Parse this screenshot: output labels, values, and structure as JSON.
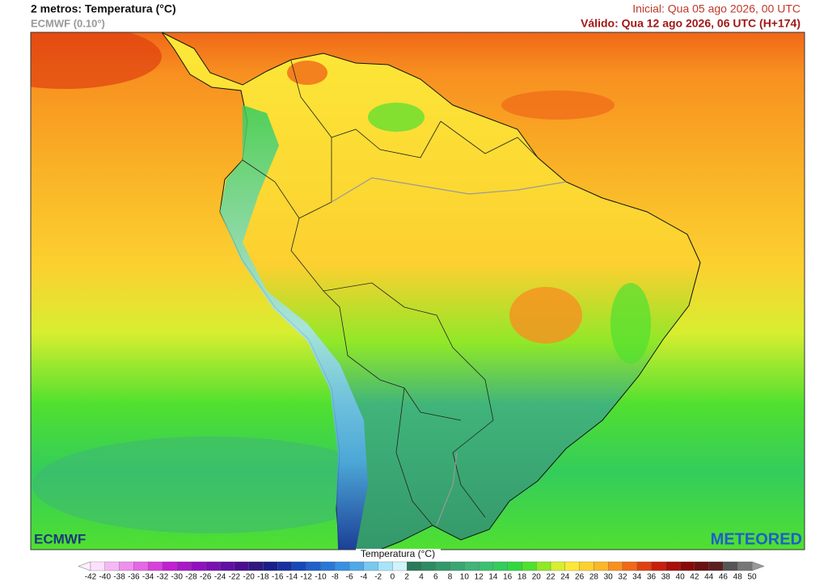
{
  "header": {
    "title": "2 metros: Temperatura (°C)",
    "model": "ECMWF (0.10°)",
    "initial": "Inicial: Qua 05 ago 2026, 00 UTC",
    "valid": "Válido: Qua 12 ago 2026, 06 UTC (H+174)"
  },
  "logos": {
    "left": "ECMWF",
    "right": "METEORED"
  },
  "colorbar": {
    "label": "Temperatura (°C)",
    "ticks": [
      -42,
      -40,
      -38,
      -36,
      -34,
      -32,
      -30,
      -28,
      -26,
      -24,
      -22,
      -20,
      -18,
      -16,
      -14,
      -12,
      -10,
      -8,
      -6,
      -4,
      -2,
      0,
      2,
      4,
      6,
      8,
      10,
      12,
      14,
      16,
      18,
      20,
      22,
      24,
      26,
      28,
      30,
      32,
      34,
      36,
      38,
      40,
      42,
      44,
      46,
      48,
      50
    ],
    "colors": [
      "#fde0fd",
      "#f5b8f5",
      "#ee90ee",
      "#e468e6",
      "#d840dc",
      "#c020d0",
      "#a818c8",
      "#9010c0",
      "#7a10b0",
      "#6010a0",
      "#4a1090",
      "#301880",
      "#182088",
      "#1830a0",
      "#1848b8",
      "#2060c8",
      "#2878d8",
      "#3890e0",
      "#50a8e8",
      "#78c8f0",
      "#a8e4f8",
      "#d0f4fc",
      "#2a7a5a",
      "#2e8a62",
      "#34986a",
      "#3aa672",
      "#40b47a",
      "#3cc070",
      "#34cc5c",
      "#30d840",
      "#50e030",
      "#90e828",
      "#d8ee30",
      "#fce838",
      "#fcd030",
      "#fab828",
      "#f89020",
      "#f06818",
      "#e04010",
      "#c82008",
      "#a81008",
      "#880808",
      "#6a1010",
      "#5a2020",
      "#555555",
      "#777777"
    ],
    "low_color": "#fff0ff",
    "high_color": "#999999"
  }
}
